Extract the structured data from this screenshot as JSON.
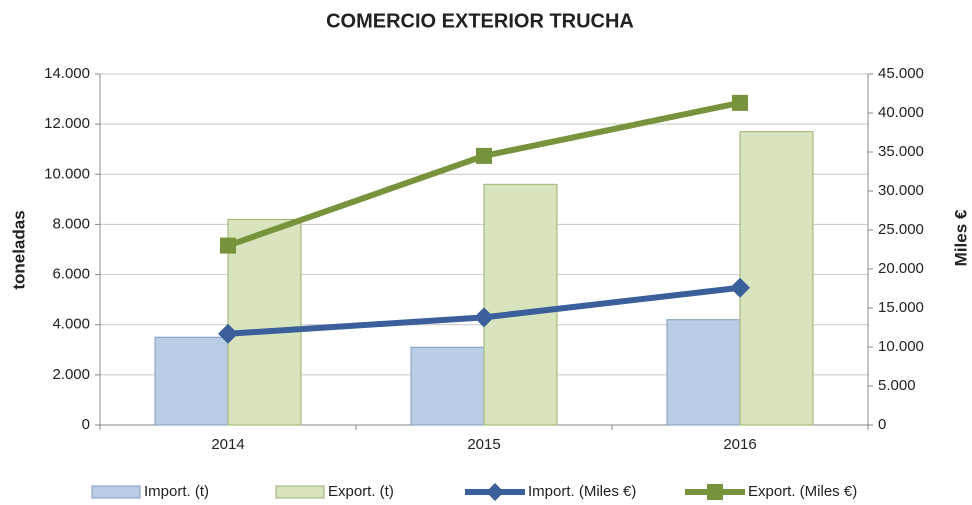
{
  "chart_data": {
    "type": "bar",
    "title": "COMERCIO EXTERIOR TRUCHA",
    "y_label": "toneladas",
    "y2_label": "Miles €",
    "categories": [
      "2014",
      "2015",
      "2016"
    ],
    "series": [
      {
        "name": "Import. (t)",
        "type": "bar",
        "color": "#b9cde5",
        "values": [
          3500,
          3100,
          4200
        ]
      },
      {
        "name": "Export. (t)",
        "type": "bar",
        "color": "#d7e4bd",
        "values": [
          8200,
          9600,
          11700
        ]
      },
      {
        "name": "Import. (Miles €)",
        "type": "line",
        "axis": "y2",
        "marker": "diamond",
        "color": "#3a5f9a",
        "values": [
          11700,
          13800,
          17600
        ]
      },
      {
        "name": "Export. (Miles €)",
        "type": "line",
        "axis": "y2",
        "marker": "square",
        "color": "#77933c",
        "values": [
          23000,
          34500,
          41300
        ]
      }
    ],
    "ylim": [
      0,
      14000
    ],
    "yticks": [
      0,
      {
        "value": 2000,
        "label": "2.000"
      },
      {
        "value": 4000,
        "label": "4.000"
      },
      {
        "value": 6000,
        "label": "6.000"
      },
      {
        "value": 8000,
        "label": "8.000"
      },
      {
        "value": 10000,
        "label": "10.000"
      },
      {
        "value": 12000,
        "label": "12.000"
      },
      {
        "value": 14000,
        "label": "14.000"
      }
    ],
    "y2lim": [
      0,
      45000
    ],
    "y2ticks": [
      0,
      {
        "value": 5000,
        "label": "5.000"
      },
      {
        "value": 10000,
        "label": "10.000"
      },
      {
        "value": 15000,
        "label": "15.000"
      },
      {
        "value": 20000,
        "label": "20.000"
      },
      {
        "value": 25000,
        "label": "25.000"
      },
      {
        "value": 30000,
        "label": "30.000"
      },
      {
        "value": 35000,
        "label": "35.000"
      },
      {
        "value": 40000,
        "label": "40.000"
      },
      {
        "value": 45000,
        "label": "45.000"
      }
    ],
    "grid": true,
    "legend": "bottom"
  }
}
